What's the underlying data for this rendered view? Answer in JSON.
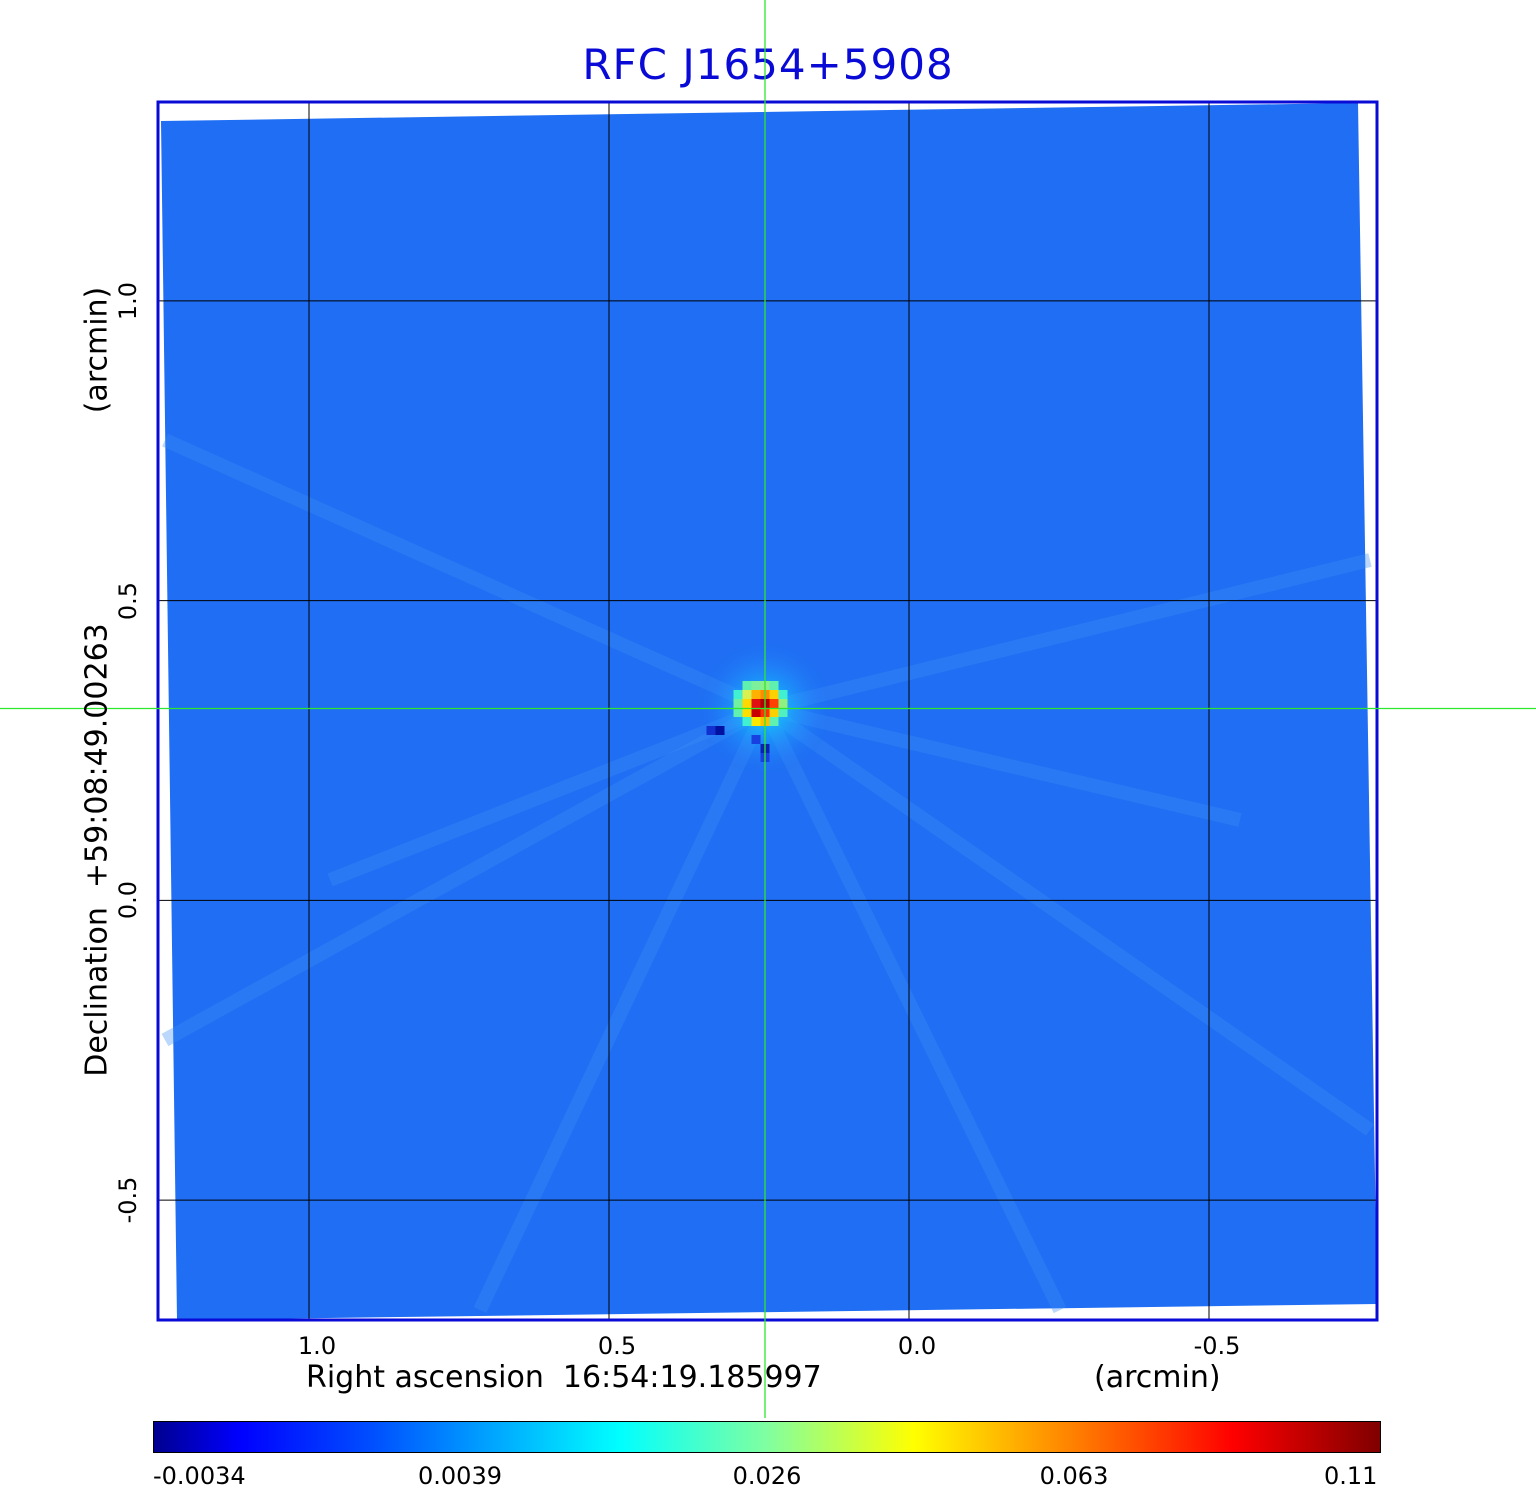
{
  "chart_data": {
    "type": "heatmap",
    "title": "RFC J1654+5908",
    "x_axis": {
      "label": "Right ascension  16:54:19.185997",
      "unit": "(arcmin)",
      "ticks": [
        1.0,
        0.5,
        0.0,
        -0.5
      ],
      "tick_labels": [
        "1.0",
        "0.5",
        "0.0",
        "-0.5"
      ],
      "range": [
        1.25,
        -0.78
      ],
      "reversed": true
    },
    "y_axis": {
      "label": "Declination  +59:08:49.00263",
      "unit": "(arcmin)",
      "ticks": [
        1.0,
        0.5,
        0.0,
        -0.5
      ],
      "tick_labels": [
        "1.0",
        "0.5",
        "0.0",
        "-0.5"
      ],
      "range": [
        -0.7,
        1.33
      ]
    },
    "grid": true,
    "crosshair": {
      "x": 0.24,
      "y": 0.32,
      "color": "#2ee82e"
    },
    "source_peak": {
      "x": 0.24,
      "y": 0.32,
      "value": 0.11
    },
    "colorbar": {
      "ticks": [
        -0.0034,
        0.0039,
        0.026,
        0.063,
        0.11
      ],
      "tick_labels": [
        "-0.0034",
        "0.0039",
        "0.026",
        "0.063",
        "0.11"
      ],
      "colormap": "jet",
      "scale": "nonlinear"
    },
    "background_color": "#1f6ef3"
  }
}
